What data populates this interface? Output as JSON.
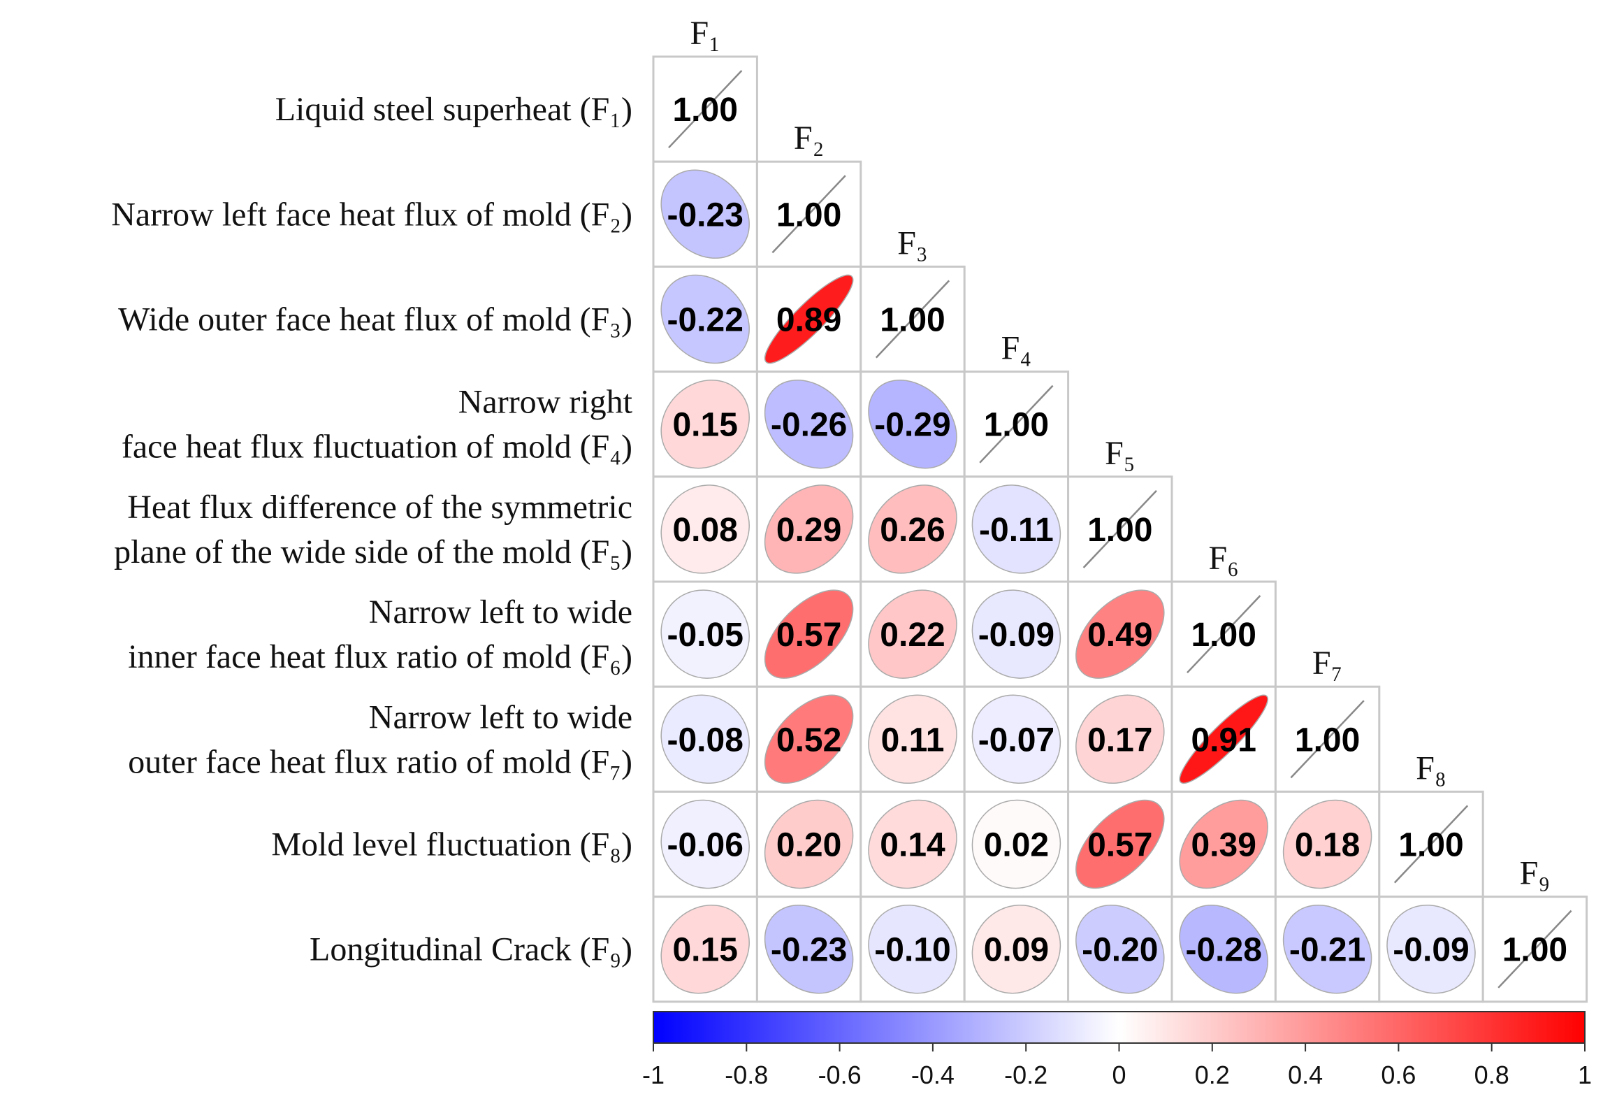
{
  "chart_data": {
    "type": "heatmap",
    "style": "correlation-ellipse-lower-triangle",
    "variables": [
      "F1",
      "F2",
      "F3",
      "F4",
      "F5",
      "F6",
      "F7",
      "F8",
      "F9"
    ],
    "column_labels": [
      "F1",
      "F2",
      "F3",
      "F4",
      "F5",
      "F6",
      "F7",
      "F8",
      "F9"
    ],
    "row_labels": [
      [
        "Liquid steel superheat (F1)"
      ],
      [
        "Narrow left face heat flux of mold (F2)"
      ],
      [
        "Wide outer face heat flux of mold (F3)"
      ],
      [
        "Narrow right",
        "face heat flux fluctuation of mold (F4)"
      ],
      [
        "Heat flux difference of the symmetric",
        "plane of the wide side of the mold (F5)"
      ],
      [
        "Narrow left to wide",
        "inner face heat flux ratio of mold (F6)"
      ],
      [
        "Narrow left to wide",
        "outer face heat flux ratio of mold (F7)"
      ],
      [
        "Mold level fluctuation (F8)"
      ],
      [
        "Longitudinal Crack (F9)"
      ]
    ],
    "matrix": [
      [
        1.0
      ],
      [
        -0.23,
        1.0
      ],
      [
        -0.22,
        0.89,
        1.0
      ],
      [
        0.15,
        -0.26,
        -0.29,
        1.0
      ],
      [
        0.08,
        0.29,
        0.26,
        -0.11,
        1.0
      ],
      [
        -0.05,
        0.57,
        0.22,
        -0.09,
        0.49,
        1.0
      ],
      [
        -0.08,
        0.52,
        0.11,
        -0.07,
        0.17,
        0.91,
        1.0
      ],
      [
        -0.06,
        0.2,
        0.14,
        0.02,
        0.57,
        0.39,
        0.18,
        1.0
      ],
      [
        0.15,
        -0.23,
        -0.1,
        0.09,
        -0.2,
        -0.28,
        -0.21,
        -0.09,
        1.0
      ]
    ],
    "value_labels": [
      [
        "1.00"
      ],
      [
        "-0.23",
        "1.00"
      ],
      [
        "-0.22",
        "0.89",
        "1.00"
      ],
      [
        "0.15",
        "-0.26",
        "-0.29",
        "1.00"
      ],
      [
        "0.08",
        "0.29",
        "0.26",
        "-0.11",
        "1.00"
      ],
      [
        "-0.05",
        "0.57",
        "0.22",
        "-0.09",
        "0.49",
        "1.00"
      ],
      [
        "-0.08",
        "0.52",
        "0.11",
        "-0.07",
        "0.17",
        "0.91",
        "1.00"
      ],
      [
        "-0.06",
        "0.20",
        "0.14",
        "0.02",
        "0.57",
        "0.39",
        "0.18",
        "1.00"
      ],
      [
        "0.15",
        "-0.23",
        "-0.10",
        "0.09",
        "-0.20",
        "-0.28",
        "-0.21",
        "-0.09",
        "1.00"
      ]
    ],
    "colorbar": {
      "range": [
        -1,
        1
      ],
      "ticks": [
        -1,
        -0.8,
        -0.6,
        -0.4,
        -0.2,
        0,
        0.2,
        0.4,
        0.6,
        0.8,
        1
      ],
      "tick_labels": [
        "-1",
        "-0.8",
        "-0.6",
        "-0.4",
        "-0.2",
        "0",
        "0.2",
        "0.4",
        "0.6",
        "0.8",
        "1"
      ],
      "placement": "bottom"
    },
    "colors": {
      "negative": "#0000ff",
      "zero": "#ffffff",
      "positive": "#ff0000"
    }
  }
}
